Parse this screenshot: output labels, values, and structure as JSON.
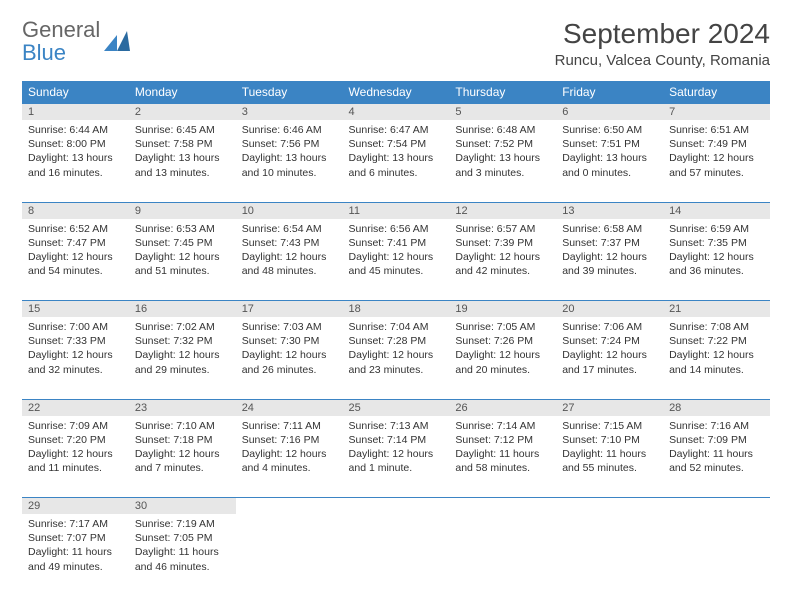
{
  "logo": {
    "line1": "General",
    "line2": "Blue"
  },
  "title": "September 2024",
  "location": "Runcu, Valcea County, Romania",
  "colors": {
    "header_bg": "#3b84c4",
    "header_fg": "#ffffff",
    "daynum_bg": "#e7e7e7",
    "border": "#3b84c4",
    "text": "#333333",
    "page_bg": "#ffffff"
  },
  "weekdays": [
    "Sunday",
    "Monday",
    "Tuesday",
    "Wednesday",
    "Thursday",
    "Friday",
    "Saturday"
  ],
  "weeks": [
    [
      {
        "n": "1",
        "sunrise": "6:44 AM",
        "sunset": "8:00 PM",
        "daylight": "13 hours and 16 minutes."
      },
      {
        "n": "2",
        "sunrise": "6:45 AM",
        "sunset": "7:58 PM",
        "daylight": "13 hours and 13 minutes."
      },
      {
        "n": "3",
        "sunrise": "6:46 AM",
        "sunset": "7:56 PM",
        "daylight": "13 hours and 10 minutes."
      },
      {
        "n": "4",
        "sunrise": "6:47 AM",
        "sunset": "7:54 PM",
        "daylight": "13 hours and 6 minutes."
      },
      {
        "n": "5",
        "sunrise": "6:48 AM",
        "sunset": "7:52 PM",
        "daylight": "13 hours and 3 minutes."
      },
      {
        "n": "6",
        "sunrise": "6:50 AM",
        "sunset": "7:51 PM",
        "daylight": "13 hours and 0 minutes."
      },
      {
        "n": "7",
        "sunrise": "6:51 AM",
        "sunset": "7:49 PM",
        "daylight": "12 hours and 57 minutes."
      }
    ],
    [
      {
        "n": "8",
        "sunrise": "6:52 AM",
        "sunset": "7:47 PM",
        "daylight": "12 hours and 54 minutes."
      },
      {
        "n": "9",
        "sunrise": "6:53 AM",
        "sunset": "7:45 PM",
        "daylight": "12 hours and 51 minutes."
      },
      {
        "n": "10",
        "sunrise": "6:54 AM",
        "sunset": "7:43 PM",
        "daylight": "12 hours and 48 minutes."
      },
      {
        "n": "11",
        "sunrise": "6:56 AM",
        "sunset": "7:41 PM",
        "daylight": "12 hours and 45 minutes."
      },
      {
        "n": "12",
        "sunrise": "6:57 AM",
        "sunset": "7:39 PM",
        "daylight": "12 hours and 42 minutes."
      },
      {
        "n": "13",
        "sunrise": "6:58 AM",
        "sunset": "7:37 PM",
        "daylight": "12 hours and 39 minutes."
      },
      {
        "n": "14",
        "sunrise": "6:59 AM",
        "sunset": "7:35 PM",
        "daylight": "12 hours and 36 minutes."
      }
    ],
    [
      {
        "n": "15",
        "sunrise": "7:00 AM",
        "sunset": "7:33 PM",
        "daylight": "12 hours and 32 minutes."
      },
      {
        "n": "16",
        "sunrise": "7:02 AM",
        "sunset": "7:32 PM",
        "daylight": "12 hours and 29 minutes."
      },
      {
        "n": "17",
        "sunrise": "7:03 AM",
        "sunset": "7:30 PM",
        "daylight": "12 hours and 26 minutes."
      },
      {
        "n": "18",
        "sunrise": "7:04 AM",
        "sunset": "7:28 PM",
        "daylight": "12 hours and 23 minutes."
      },
      {
        "n": "19",
        "sunrise": "7:05 AM",
        "sunset": "7:26 PM",
        "daylight": "12 hours and 20 minutes."
      },
      {
        "n": "20",
        "sunrise": "7:06 AM",
        "sunset": "7:24 PM",
        "daylight": "12 hours and 17 minutes."
      },
      {
        "n": "21",
        "sunrise": "7:08 AM",
        "sunset": "7:22 PM",
        "daylight": "12 hours and 14 minutes."
      }
    ],
    [
      {
        "n": "22",
        "sunrise": "7:09 AM",
        "sunset": "7:20 PM",
        "daylight": "12 hours and 11 minutes."
      },
      {
        "n": "23",
        "sunrise": "7:10 AM",
        "sunset": "7:18 PM",
        "daylight": "12 hours and 7 minutes."
      },
      {
        "n": "24",
        "sunrise": "7:11 AM",
        "sunset": "7:16 PM",
        "daylight": "12 hours and 4 minutes."
      },
      {
        "n": "25",
        "sunrise": "7:13 AM",
        "sunset": "7:14 PM",
        "daylight": "12 hours and 1 minute."
      },
      {
        "n": "26",
        "sunrise": "7:14 AM",
        "sunset": "7:12 PM",
        "daylight": "11 hours and 58 minutes."
      },
      {
        "n": "27",
        "sunrise": "7:15 AM",
        "sunset": "7:10 PM",
        "daylight": "11 hours and 55 minutes."
      },
      {
        "n": "28",
        "sunrise": "7:16 AM",
        "sunset": "7:09 PM",
        "daylight": "11 hours and 52 minutes."
      }
    ],
    [
      {
        "n": "29",
        "sunrise": "7:17 AM",
        "sunset": "7:07 PM",
        "daylight": "11 hours and 49 minutes."
      },
      {
        "n": "30",
        "sunrise": "7:19 AM",
        "sunset": "7:05 PM",
        "daylight": "11 hours and 46 minutes."
      },
      null,
      null,
      null,
      null,
      null
    ]
  ],
  "labels": {
    "sunrise": "Sunrise: ",
    "sunset": "Sunset: ",
    "daylight": "Daylight: "
  }
}
